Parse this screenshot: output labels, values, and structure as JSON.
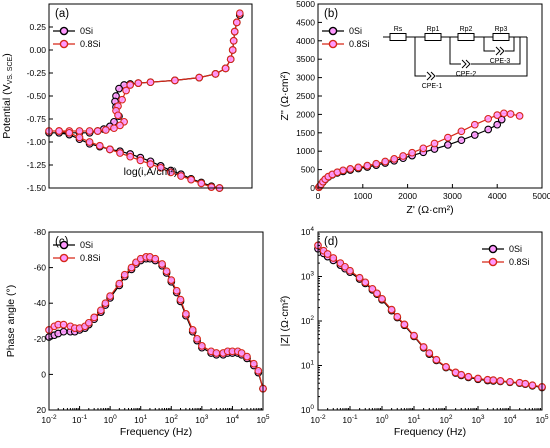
{
  "colors": {
    "s0": "#000000",
    "s8": "#d62718",
    "pt": "#ff99ff",
    "text": "#000000"
  },
  "chart_data": [
    {
      "id": "a",
      "panel_label": "(a)",
      "type": "line",
      "xlabel": "log(i,A/cm²)",
      "ylabel_main": "Potential (V",
      "ylabel_sub": "VS. SCE",
      "ylabel_end": ")",
      "xlim": [
        0,
        1
      ],
      "ylim": [
        -1.5,
        0.5
      ],
      "xaxis_visible": false,
      "yticks": [
        {
          "v": -1.5,
          "label": "-1.50"
        },
        {
          "v": -1.25,
          "label": "-1.25"
        },
        {
          "v": -1.0,
          "label": "-1.00"
        },
        {
          "v": -0.75,
          "label": "-0.75"
        },
        {
          "v": -0.5,
          "label": "-0.50"
        },
        {
          "v": -0.25,
          "label": "-0.25"
        },
        {
          "v": 0.0,
          "label": "0.00"
        },
        {
          "v": 0.25,
          "label": "0.25"
        }
      ],
      "legend": [
        {
          "label": "0Si",
          "series": "s0"
        },
        {
          "label": "0.8Si",
          "series": "s8"
        }
      ],
      "series": [
        {
          "key": "s0",
          "name": "0Si",
          "x": [
            0.94,
            0.925,
            0.915,
            0.91,
            0.905,
            0.895,
            0.87,
            0.82,
            0.74,
            0.62,
            0.5,
            0.44,
            0.4,
            0.37,
            0.345,
            0.33,
            0.325,
            0.33,
            0.345,
            0.32,
            0.3,
            0.27,
            0.24,
            0.2,
            0.15,
            0.1,
            0.05,
            0.0,
            0.05,
            0.1,
            0.15,
            0.2,
            0.25,
            0.3,
            0.35,
            0.4,
            0.45,
            0.5,
            0.55,
            0.6,
            0.65,
            0.7,
            0.75,
            0.8,
            0.84
          ],
          "y": [
            0.38,
            0.3,
            0.2,
            0.1,
            0.0,
            -0.1,
            -0.2,
            -0.26,
            -0.3,
            -0.33,
            -0.35,
            -0.36,
            -0.37,
            -0.38,
            -0.42,
            -0.5,
            -0.56,
            -0.62,
            -0.72,
            -0.78,
            -0.83,
            -0.86,
            -0.88,
            -0.9,
            -0.9,
            -0.9,
            -0.9,
            -0.9,
            -0.9,
            -0.92,
            -0.97,
            -1.02,
            -1.05,
            -1.08,
            -1.1,
            -1.13,
            -1.17,
            -1.21,
            -1.26,
            -1.31,
            -1.35,
            -1.4,
            -1.44,
            -1.48,
            -1.5
          ]
        },
        {
          "key": "s8",
          "name": "0.8Si",
          "x": [
            0.94,
            0.925,
            0.915,
            0.91,
            0.905,
            0.895,
            0.87,
            0.82,
            0.74,
            0.62,
            0.5,
            0.44,
            0.4,
            0.38,
            0.36,
            0.34,
            0.33,
            0.34,
            0.37,
            0.35,
            0.32,
            0.28,
            0.24,
            0.2,
            0.15,
            0.1,
            0.05,
            0.0,
            0.05,
            0.1,
            0.15,
            0.2,
            0.25,
            0.3,
            0.35,
            0.4,
            0.45,
            0.5,
            0.55,
            0.6,
            0.65,
            0.7,
            0.75,
            0.8,
            0.84
          ],
          "y": [
            0.4,
            0.3,
            0.2,
            0.1,
            0.0,
            -0.1,
            -0.2,
            -0.26,
            -0.3,
            -0.33,
            -0.35,
            -0.36,
            -0.38,
            -0.44,
            -0.54,
            -0.61,
            -0.66,
            -0.71,
            -0.78,
            -0.82,
            -0.85,
            -0.87,
            -0.88,
            -0.88,
            -0.88,
            -0.88,
            -0.88,
            -0.88,
            -0.88,
            -0.9,
            -0.95,
            -1.0,
            -1.04,
            -1.08,
            -1.12,
            -1.16,
            -1.2,
            -1.24,
            -1.28,
            -1.33,
            -1.37,
            -1.41,
            -1.45,
            -1.49,
            -1.5
          ]
        }
      ]
    },
    {
      "id": "b",
      "panel_label": "(b)",
      "type": "line",
      "xlabel": "Z' (Ω·cm²)",
      "ylabel": "Z'' (Ω·cm²)",
      "xlim": [
        0,
        5000
      ],
      "ylim": [
        0,
        5000
      ],
      "xticks": [
        {
          "v": 0,
          "label": "0"
        },
        {
          "v": 1000,
          "label": "1000"
        },
        {
          "v": 2000,
          "label": "2000"
        },
        {
          "v": 3000,
          "label": "3000"
        },
        {
          "v": 4000,
          "label": "4000"
        },
        {
          "v": 5000,
          "label": "5000"
        }
      ],
      "yticks": [
        {
          "v": 0,
          "label": "0"
        },
        {
          "v": 500,
          "label": "500"
        },
        {
          "v": 1000,
          "label": "1000"
        },
        {
          "v": 1500,
          "label": "1500"
        },
        {
          "v": 2000,
          "label": "2000"
        },
        {
          "v": 2500,
          "label": "2500"
        },
        {
          "v": 3000,
          "label": "3000"
        },
        {
          "v": 3500,
          "label": "3500"
        },
        {
          "v": 4000,
          "label": "4000"
        },
        {
          "v": 4500,
          "label": "4500"
        },
        {
          "v": 5000,
          "label": "5000"
        }
      ],
      "legend": [
        {
          "label": "0Si",
          "series": "s0"
        },
        {
          "label": "0.8Si",
          "series": "s8"
        }
      ],
      "circuit": {
        "elements": [
          "Rs",
          "Rp1",
          "Rp2",
          "Rp3",
          "CPE-1",
          "CPE-2",
          "CPE-3"
        ]
      },
      "series": [
        {
          "key": "s0",
          "name": "0Si",
          "x": [
            20,
            40,
            70,
            110,
            160,
            230,
            320,
            430,
            560,
            720,
            900,
            1100,
            1300,
            1500,
            1700,
            1900,
            2100,
            2350,
            2600,
            2900,
            3200,
            3500,
            3800,
            4000,
            4100
          ],
          "y": [
            20,
            50,
            100,
            160,
            230,
            300,
            360,
            410,
            450,
            490,
            530,
            570,
            620,
            680,
            740,
            810,
            880,
            970,
            1060,
            1170,
            1300,
            1440,
            1590,
            1720,
            1860
          ]
        },
        {
          "key": "s8",
          "name": "0.8Si",
          "x": [
            20,
            40,
            70,
            110,
            160,
            230,
            320,
            430,
            560,
            720,
            900,
            1100,
            1300,
            1500,
            1700,
            1900,
            2100,
            2350,
            2600,
            2900,
            3200,
            3500,
            3800,
            4000,
            4150,
            4300,
            4500
          ],
          "y": [
            20,
            50,
            100,
            170,
            240,
            310,
            370,
            430,
            480,
            520,
            560,
            610,
            660,
            720,
            790,
            870,
            960,
            1080,
            1210,
            1370,
            1540,
            1720,
            1880,
            1980,
            2030,
            2010,
            1960
          ]
        }
      ]
    },
    {
      "id": "c",
      "panel_label": "(c)",
      "type": "line",
      "xlabel": "Frequency (Hz)",
      "ylabel": "Phase angle (°)",
      "xscale": "log",
      "xlim": [
        0.01,
        100000
      ],
      "ylim": [
        20,
        -80
      ],
      "yaxis_inverted": true,
      "xticks": [
        {
          "v": 0.01,
          "base": "10",
          "exp": "-2"
        },
        {
          "v": 0.1,
          "base": "10",
          "exp": "-1"
        },
        {
          "v": 1,
          "base": "10",
          "exp": "0"
        },
        {
          "v": 10,
          "base": "10",
          "exp": "1"
        },
        {
          "v": 100,
          "base": "10",
          "exp": "2"
        },
        {
          "v": 1000,
          "base": "10",
          "exp": "3"
        },
        {
          "v": 10000,
          "base": "10",
          "exp": "4"
        },
        {
          "v": 100000,
          "base": "10",
          "exp": "5"
        }
      ],
      "yticks": [
        {
          "v": -80,
          "label": "-80"
        },
        {
          "v": -60,
          "label": "-60"
        },
        {
          "v": -40,
          "label": "-40"
        },
        {
          "v": -20,
          "label": "-20"
        },
        {
          "v": 0,
          "label": "0"
        },
        {
          "v": 20,
          "label": "20"
        }
      ],
      "legend": [
        {
          "label": "0Si",
          "series": "s0"
        },
        {
          "label": "0.8Si",
          "series": "s8"
        }
      ],
      "series": [
        {
          "key": "s0",
          "name": "0Si",
          "x": [
            0.01,
            0.015,
            0.02,
            0.03,
            0.05,
            0.07,
            0.1,
            0.15,
            0.2,
            0.3,
            0.5,
            0.7,
            1,
            2,
            3,
            5,
            7,
            10,
            15,
            20,
            30,
            50,
            70,
            100,
            150,
            200,
            300,
            500,
            700,
            1000,
            2000,
            3000,
            5000,
            7000,
            10000,
            15000,
            20000,
            30000,
            50000,
            70000,
            100000
          ],
          "y": [
            -21,
            -22,
            -23,
            -24,
            -24,
            -24,
            -25,
            -26,
            -28,
            -31,
            -35,
            -39,
            -43,
            -50,
            -55,
            -59,
            -62,
            -64,
            -65,
            -65,
            -64,
            -61,
            -57,
            -52,
            -46,
            -41,
            -33,
            -24,
            -19,
            -15,
            -12,
            -11,
            -11,
            -12,
            -12,
            -12,
            -11,
            -9,
            -5,
            -1,
            8
          ]
        },
        {
          "key": "s8",
          "name": "0.8Si",
          "x": [
            0.01,
            0.015,
            0.02,
            0.03,
            0.05,
            0.07,
            0.1,
            0.15,
            0.2,
            0.3,
            0.5,
            0.7,
            1,
            2,
            3,
            5,
            7,
            10,
            15,
            20,
            30,
            50,
            70,
            100,
            150,
            200,
            300,
            500,
            700,
            1000,
            2000,
            3000,
            5000,
            7000,
            10000,
            15000,
            20000,
            30000,
            50000,
            70000,
            100000
          ],
          "y": [
            -25,
            -27,
            -28,
            -28,
            -27,
            -26,
            -26,
            -27,
            -29,
            -32,
            -36,
            -40,
            -44,
            -51,
            -56,
            -60,
            -63,
            -65,
            -66,
            -66,
            -65,
            -62,
            -58,
            -53,
            -47,
            -42,
            -34,
            -25,
            -20,
            -16,
            -13,
            -12,
            -12,
            -13,
            -13,
            -13,
            -12,
            -10,
            -6,
            -2,
            8
          ]
        }
      ]
    },
    {
      "id": "d",
      "panel_label": "(d)",
      "type": "line",
      "xlabel": "Frequency (Hz)",
      "ylabel": "|Z| (Ω·cm²)",
      "xscale": "log",
      "yscale": "log",
      "xlim": [
        0.01,
        100000
      ],
      "ylim": [
        1,
        10000
      ],
      "xticks": [
        {
          "v": 0.01,
          "base": "10",
          "exp": "-2"
        },
        {
          "v": 0.1,
          "base": "10",
          "exp": "-1"
        },
        {
          "v": 1,
          "base": "10",
          "exp": "0"
        },
        {
          "v": 10,
          "base": "10",
          "exp": "1"
        },
        {
          "v": 100,
          "base": "10",
          "exp": "2"
        },
        {
          "v": 1000,
          "base": "10",
          "exp": "3"
        },
        {
          "v": 10000,
          "base": "10",
          "exp": "4"
        },
        {
          "v": 100000,
          "base": "10",
          "exp": "5"
        }
      ],
      "yticks": [
        {
          "v": 1,
          "base": "10",
          "exp": "0"
        },
        {
          "v": 10,
          "base": "10",
          "exp": "1"
        },
        {
          "v": 100,
          "base": "10",
          "exp": "2"
        },
        {
          "v": 1000,
          "base": "10",
          "exp": "3"
        },
        {
          "v": 10000,
          "base": "10",
          "exp": "4"
        }
      ],
      "legend": [
        {
          "label": "0Si",
          "series": "s0"
        },
        {
          "label": "0.8Si",
          "series": "s8"
        }
      ],
      "series": [
        {
          "key": "s0",
          "name": "0Si",
          "x": [
            0.01,
            0.015,
            0.02,
            0.03,
            0.05,
            0.07,
            0.1,
            0.2,
            0.3,
            0.5,
            0.7,
            1,
            2,
            3,
            5,
            10,
            20,
            30,
            50,
            100,
            200,
            300,
            500,
            1000,
            2000,
            3000,
            5000,
            10000,
            20000,
            30000,
            50000,
            100000
          ],
          "y": [
            4200,
            3300,
            2800,
            2300,
            1800,
            1500,
            1250,
            880,
            700,
            500,
            400,
            300,
            170,
            120,
            80,
            45,
            25,
            18,
            13,
            9,
            6.8,
            6.0,
            5.4,
            4.9,
            4.6,
            4.5,
            4.4,
            4.2,
            4.0,
            3.8,
            3.5,
            3.2
          ]
        },
        {
          "key": "s8",
          "name": "0.8Si",
          "x": [
            0.01,
            0.015,
            0.02,
            0.03,
            0.05,
            0.07,
            0.1,
            0.2,
            0.3,
            0.5,
            0.7,
            1,
            2,
            3,
            5,
            10,
            20,
            30,
            50,
            100,
            200,
            300,
            500,
            1000,
            2000,
            3000,
            5000,
            10000,
            20000,
            30000,
            50000,
            100000
          ],
          "y": [
            5000,
            3800,
            3200,
            2600,
            2000,
            1650,
            1350,
            940,
            740,
            530,
            420,
            315,
            180,
            125,
            84,
            47,
            26,
            19,
            13.5,
            9.3,
            7.0,
            6.2,
            5.6,
            5.1,
            4.8,
            4.7,
            4.5,
            4.3,
            4.1,
            3.9,
            3.6,
            3.3
          ]
        }
      ]
    }
  ]
}
